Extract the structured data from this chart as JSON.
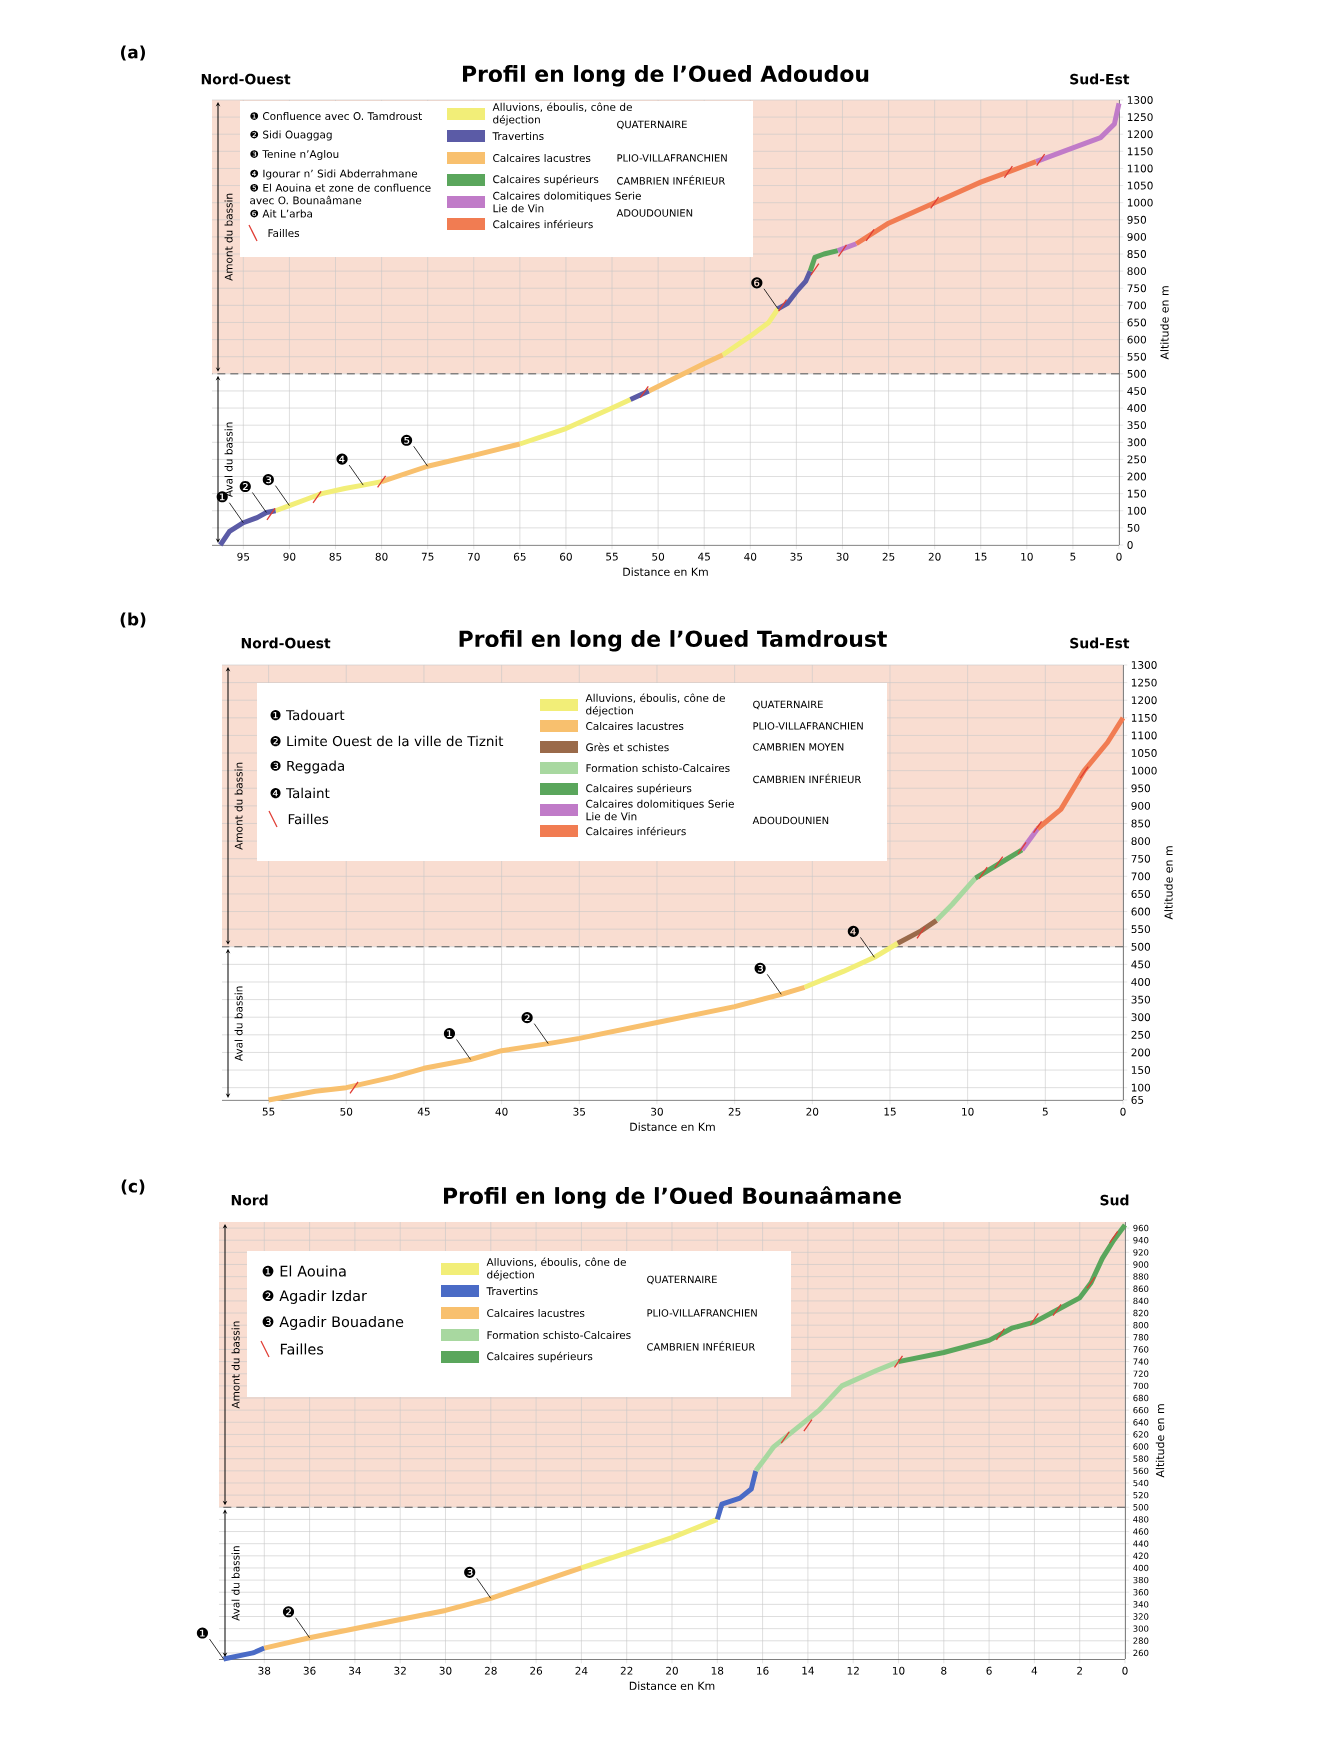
{
  "chart_data": [
    {
      "type": "line",
      "title": "Profil en long de l’Oued Adoudou",
      "xlabel": "Distance en Km",
      "ylabel": "Altitude en m",
      "xlim": [
        98.4,
        0
      ],
      "ylim": [
        0,
        1300
      ],
      "xticks": [
        95,
        90,
        85,
        80,
        75,
        70,
        65,
        60,
        55,
        50,
        45,
        40,
        35,
        30,
        25,
        20,
        15,
        10,
        5,
        0
      ],
      "yticks": [
        0,
        50,
        100,
        150,
        200,
        250,
        300,
        350,
        400,
        450,
        500,
        550,
        600,
        650,
        700,
        750,
        800,
        850,
        900,
        950,
        1000,
        1050,
        1100,
        1150,
        1200,
        1250,
        1300
      ],
      "grid": true,
      "legend": "top left",
      "bands": [
        {
          "axis": "y",
          "from": 500,
          "to": 1300,
          "label": "Amont du bassin",
          "color": "#f9ddd1"
        },
        {
          "axis": "y",
          "from": 0,
          "to": 500,
          "label": "Aval du bassin",
          "color": "#ffffff"
        }
      ],
      "ref_lines": [
        {
          "axis": "y",
          "value": 500,
          "line_style": "dashed",
          "color": "#555555"
        }
      ],
      "series": [
        {
          "name": "Alluvions, éboulis, cône de déjection",
          "color": "#f2ee78",
          "x": [
            91.5,
            90,
            88,
            86.5,
            84,
            82,
            80,
            70,
            65,
            60,
            55,
            53,
            48,
            43,
            40,
            38,
            37
          ],
          "values": [
            100,
            115,
            135,
            150,
            165,
            175,
            185,
            null,
            295,
            340,
            400,
            425,
            null,
            555,
            610,
            650,
            690
          ]
        },
        {
          "name": "Travertins",
          "color": "#5b5ba6",
          "x": [
            97.5,
            96.5,
            95,
            93.5,
            92.5,
            91.5,
            70,
            53,
            51,
            45,
            37,
            36,
            35,
            34,
            33.5
          ],
          "values": [
            0,
            40,
            65,
            80,
            95,
            100,
            null,
            425,
            450,
            null,
            690,
            705,
            740,
            770,
            800
          ]
        },
        {
          "name": "Calcaires lacustres",
          "color": "#f8c06e",
          "x": [
            80,
            75,
            70,
            65,
            58,
            51,
            48,
            45,
            43
          ],
          "values": [
            185,
            230,
            262,
            295,
            null,
            450,
            490,
            530,
            555
          ]
        },
        {
          "name": "Calcaires supérieurs",
          "color": "#5aa65c",
          "x": [
            33.5,
            33,
            32,
            30.5
          ],
          "values": [
            800,
            840,
            850,
            860
          ]
        },
        {
          "name": "Calcaires dolomitiques Serie Lie de Vin",
          "color": "#c07bc8",
          "x": [
            30.5,
            28.5,
            20,
            9,
            5,
            2,
            0.5,
            0
          ],
          "values": [
            860,
            880,
            null,
            1120,
            1160,
            1190,
            1230,
            1290
          ]
        },
        {
          "name": "Calcaires inférieurs",
          "color": "#f17c52",
          "x": [
            28.5,
            25,
            20,
            15,
            10,
            9
          ],
          "values": [
            880,
            940,
            1000,
            1060,
            1110,
            1120
          ]
        },
        {
          "name": "Failles",
          "type": "scatter",
          "color": "#e03c34",
          "x": [
            92,
            87,
            80,
            51.5,
            36.5,
            33,
            30,
            27,
            20,
            12,
            8.5
          ],
          "values": [
            90,
            140,
            185,
            447,
            700,
            805,
            860,
            905,
            1000,
            1090,
            1125
          ]
        }
      ],
      "annotations": [
        "(a)",
        "Nord-Ouest",
        "Sud-Est",
        "❶ Confluence avec O. Tamdroust",
        "❷ Sidi Ouaggag",
        "❸ Tenine n’Aglou",
        "❹ Igourar n’ Sidi Abderrahmane",
        "❺ El Aouina et zone de confluence avec O. Bounaâmane",
        "❻ Ait L’arba",
        "QUATERNAIRE",
        "PLIO-VILLAFRANCHIEN",
        "CAMBRIEN INFÉRIEUR",
        "ADOUDOUNIEN",
        {
          "text": "❶",
          "x": 95,
          "y": 65
        },
        {
          "text": "❷",
          "x": 92.5,
          "y": 95
        },
        {
          "text": "❸",
          "x": 90,
          "y": 115
        },
        {
          "text": "❹",
          "x": 82,
          "y": 175
        },
        {
          "text": "❺",
          "x": 75,
          "y": 230
        },
        {
          "text": "❻",
          "x": 37,
          "y": 690
        }
      ]
    },
    {
      "type": "line",
      "title": "Profil en long de l’Oued Tamdroust",
      "xlabel": "Distance en Km",
      "ylabel": "Altitude en m",
      "xlim": [
        58,
        0
      ],
      "ylim": [
        65,
        1300
      ],
      "xticks": [
        55,
        50,
        45,
        40,
        35,
        30,
        25,
        20,
        15,
        10,
        5,
        0
      ],
      "yticks": [
        65,
        100,
        150,
        200,
        250,
        300,
        350,
        400,
        450,
        500,
        550,
        600,
        650,
        700,
        750,
        800,
        850,
        900,
        950,
        1000,
        1050,
        1100,
        1150,
        1200,
        1250,
        1300
      ],
      "grid": true,
      "legend": "top left",
      "bands": [
        {
          "axis": "y",
          "from": 500,
          "to": 1300,
          "label": "Amont du bassin",
          "color": "#f9ddd1"
        },
        {
          "axis": "y",
          "from": 65,
          "to": 500,
          "label": "Aval du bassin",
          "color": "#ffffff"
        }
      ],
      "ref_lines": [
        {
          "axis": "y",
          "value": 500,
          "line_style": "dashed",
          "color": "#555555"
        }
      ],
      "series": [
        {
          "name": "Alluvions, éboulis, cône de déjection",
          "color": "#f2ee78",
          "x": [
            20.5,
            18,
            16,
            14.5
          ],
          "values": [
            385,
            430,
            470,
            510
          ]
        },
        {
          "name": "Calcaires lacustres",
          "color": "#f8c06e",
          "x": [
            55,
            52,
            50,
            47,
            45,
            42,
            40,
            37,
            35,
            30,
            25,
            22,
            20.5
          ],
          "values": [
            65,
            90,
            100,
            130,
            155,
            180,
            205,
            225,
            240,
            285,
            330,
            365,
            385
          ]
        },
        {
          "name": "Grès et schistes",
          "color": "#9a6a4a",
          "x": [
            14.5,
            13,
            12
          ],
          "values": [
            510,
            545,
            575
          ]
        },
        {
          "name": "Formation schisto-Calcaires",
          "color": "#a8d8a0",
          "x": [
            12,
            11,
            10,
            9.5
          ],
          "values": [
            575,
            620,
            670,
            695
          ]
        },
        {
          "name": "Calcaires supérieurs",
          "color": "#5aa65c",
          "x": [
            9.5,
            8,
            6.5
          ],
          "values": [
            695,
            735,
            775
          ]
        },
        {
          "name": "Calcaires dolomitiques Serie Lie de Vin",
          "color": "#c07bc8",
          "x": [
            6.5,
            5.5
          ],
          "values": [
            775,
            835
          ]
        },
        {
          "name": "Calcaires inférieurs",
          "color": "#f17c52",
          "x": [
            5.5,
            4,
            2.5,
            1,
            0
          ],
          "values": [
            835,
            890,
            1000,
            1080,
            1150
          ]
        },
        {
          "name": "Failles",
          "type": "scatter",
          "color": "#e03c34",
          "x": [
            49.5,
            13,
            9,
            8,
            6.5,
            5.5,
            2.5
          ],
          "values": [
            100,
            540,
            710,
            740,
            780,
            840,
            995
          ]
        }
      ],
      "annotations": [
        "(b)",
        "Nord-Ouest",
        "Sud-Est",
        "❶ Tadouart",
        "❷ Limite Ouest de la ville de Tiznit",
        "❸ Reggada",
        "❹ Talaint",
        "QUATERNAIRE",
        "PLIO-VILLAFRANCHIEN",
        "CAMBRIEN MOYEN",
        "CAMBRIEN INFÉRIEUR",
        "ADOUDOUNIEN",
        {
          "text": "❶",
          "x": 42,
          "y": 180
        },
        {
          "text": "❷",
          "x": 37,
          "y": 225
        },
        {
          "text": "❸",
          "x": 22,
          "y": 365
        },
        {
          "text": "❹",
          "x": 16,
          "y": 470
        }
      ]
    },
    {
      "type": "line",
      "title": "Profil en long de l’Oued Bounaâmane",
      "xlabel": "Distance en Km",
      "ylabel": "Altitude en m",
      "xlim": [
        40,
        0
      ],
      "ylim": [
        250,
        970
      ],
      "xticks": [
        38,
        36,
        34,
        32,
        30,
        28,
        26,
        24,
        22,
        20,
        18,
        16,
        14,
        12,
        10,
        8,
        6,
        4,
        2,
        0
      ],
      "yticks": [
        260,
        280,
        300,
        320,
        340,
        360,
        380,
        400,
        420,
        440,
        460,
        480,
        500,
        520,
        540,
        560,
        580,
        600,
        620,
        640,
        660,
        680,
        700,
        720,
        740,
        760,
        780,
        800,
        820,
        840,
        860,
        880,
        900,
        920,
        940,
        960
      ],
      "grid": true,
      "legend": "top left",
      "bands": [
        {
          "axis": "y",
          "from": 500,
          "to": 970,
          "label": "Amont du bassin",
          "color": "#f9ddd1"
        },
        {
          "axis": "y",
          "from": 250,
          "to": 500,
          "label": "Aval du bassin",
          "color": "#ffffff"
        }
      ],
      "ref_lines": [
        {
          "axis": "y",
          "value": 500,
          "line_style": "dashed",
          "color": "#555555"
        }
      ],
      "series": [
        {
          "name": "Alluvions, éboulis, cône de déjection",
          "color": "#f2ee78",
          "x": [
            24,
            22,
            20,
            18
          ],
          "values": [
            400,
            425,
            450,
            480
          ]
        },
        {
          "name": "Travertins",
          "color": "#4a6bc6",
          "x": [
            39.8,
            38.5,
            38,
            28,
            18,
            17.8,
            17,
            16.5,
            16.3
          ],
          "values": [
            250,
            260,
            268,
            null,
            480,
            505,
            515,
            530,
            560
          ]
        },
        {
          "name": "Calcaires lacustres",
          "color": "#f8c06e",
          "x": [
            38,
            36,
            34,
            32,
            30,
            28,
            26,
            24
          ],
          "values": [
            268,
            285,
            300,
            315,
            330,
            350,
            375,
            400
          ]
        },
        {
          "name": "Formation schisto-Calcaires",
          "color": "#a8d8a0",
          "x": [
            16.3,
            15.5,
            14.5,
            13.5,
            12.5,
            11,
            10
          ],
          "values": [
            560,
            600,
            630,
            660,
            700,
            725,
            740
          ]
        },
        {
          "name": "Calcaires supérieurs",
          "color": "#5aa65c",
          "x": [
            10,
            8,
            6,
            5,
            4.5,
            4,
            3,
            2,
            1.5,
            1,
            0.5,
            0
          ],
          "values": [
            740,
            755,
            775,
            795,
            800,
            805,
            825,
            845,
            870,
            910,
            940,
            965
          ]
        },
        {
          "name": "Failles",
          "type": "scatter",
          "color": "#e03c34",
          "x": [
            15,
            14,
            10,
            5.5,
            4,
            3,
            1.5,
            0.5
          ],
          "values": [
            615,
            635,
            740,
            785,
            810,
            825,
            870,
            945
          ]
        }
      ],
      "annotations": [
        "(c)",
        "Nord",
        "Sud",
        "❶ El Aouina",
        "❷ Agadir Izdar",
        "❸ Agadir Bouadane",
        "QUATERNAIRE",
        "PLIO-VILLAFRANCHIEN",
        "CAMBRIEN INFÉRIEUR",
        {
          "text": "❶",
          "x": 39.8,
          "y": 250
        },
        {
          "text": "❷",
          "x": 36,
          "y": 285
        },
        {
          "text": "❸",
          "x": 28,
          "y": 350
        }
      ]
    }
  ]
}
